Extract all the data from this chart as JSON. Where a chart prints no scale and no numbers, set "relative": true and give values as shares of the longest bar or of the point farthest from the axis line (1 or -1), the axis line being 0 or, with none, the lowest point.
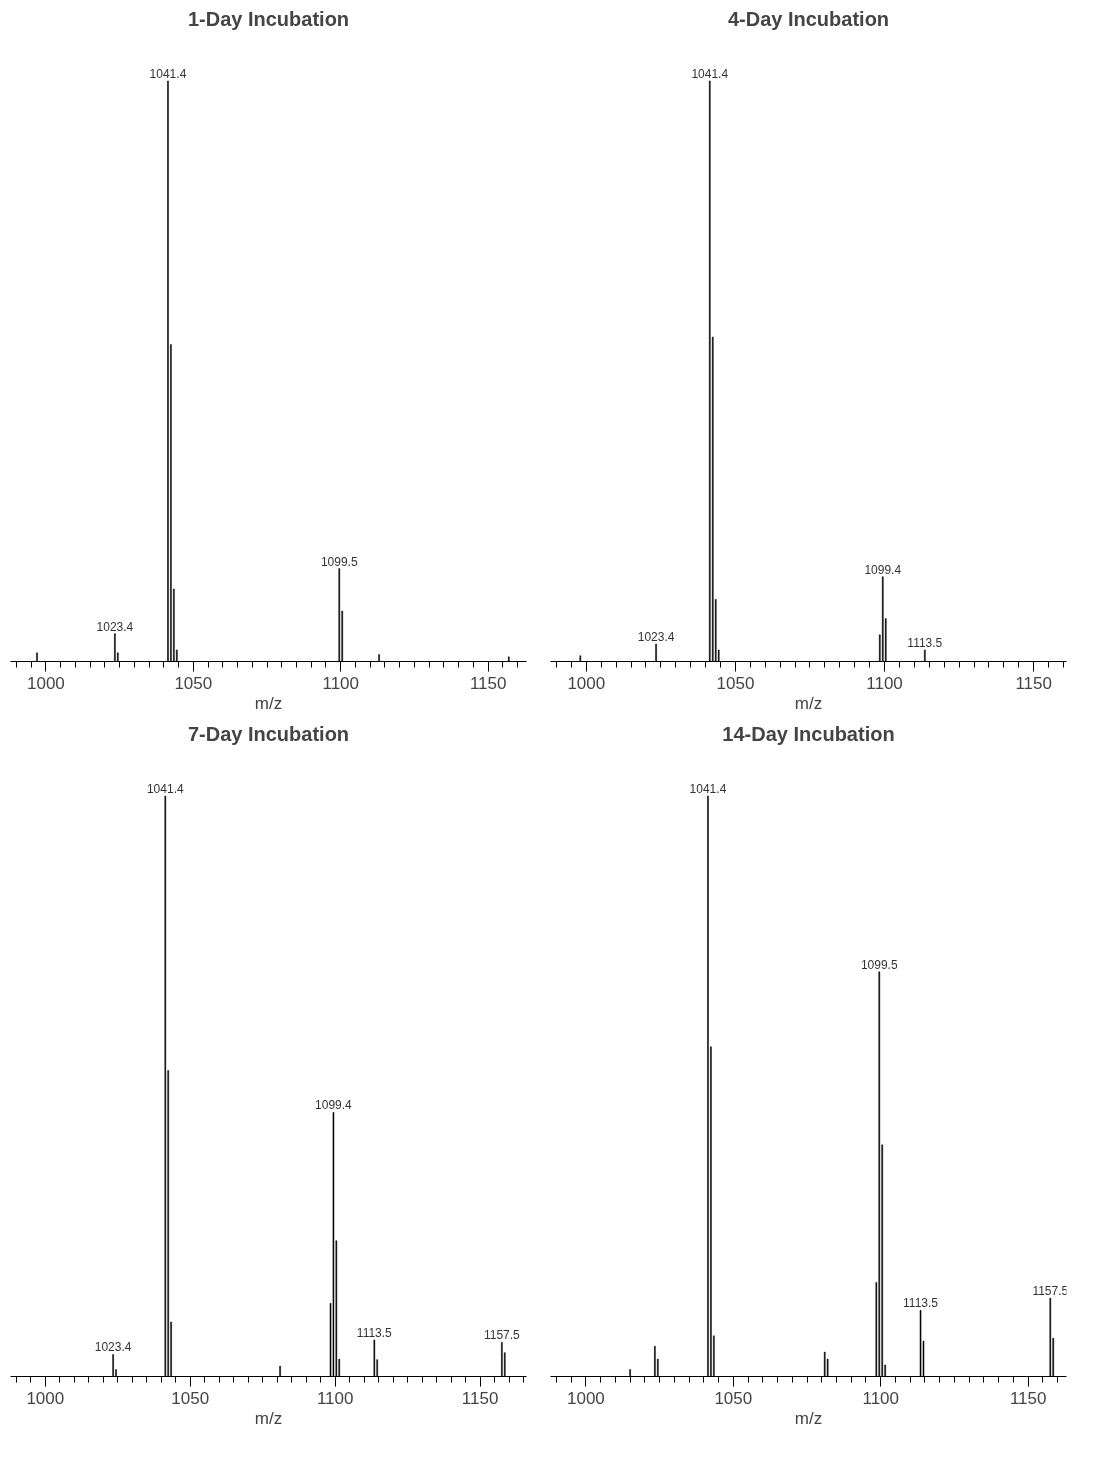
{
  "chart_data": [
    {
      "type": "bar",
      "title": "1-Day Incubation",
      "xlabel": "m/z",
      "relative": true,
      "grid": false,
      "xlim": [
        988,
        1163
      ],
      "xticks": [
        {
          "value": 990,
          "label": null
        },
        {
          "value": 995,
          "label": null
        },
        1000,
        {
          "value": 1005,
          "label": null
        },
        {
          "value": 1010,
          "label": null
        },
        {
          "value": 1015,
          "label": null
        },
        {
          "value": 1020,
          "label": null
        },
        {
          "value": 1025,
          "label": null
        },
        {
          "value": 1030,
          "label": null
        },
        {
          "value": 1035,
          "label": null
        },
        {
          "value": 1040,
          "label": null
        },
        {
          "value": 1045,
          "label": null
        },
        1050,
        {
          "value": 1055,
          "label": null
        },
        {
          "value": 1060,
          "label": null
        },
        {
          "value": 1065,
          "label": null
        },
        {
          "value": 1070,
          "label": null
        },
        {
          "value": 1075,
          "label": null
        },
        {
          "value": 1080,
          "label": null
        },
        {
          "value": 1085,
          "label": null
        },
        {
          "value": 1090,
          "label": null
        },
        {
          "value": 1095,
          "label": null
        },
        1100,
        {
          "value": 1105,
          "label": null
        },
        {
          "value": 1110,
          "label": null
        },
        {
          "value": 1115,
          "label": null
        },
        {
          "value": 1120,
          "label": null
        },
        {
          "value": 1125,
          "label": null
        },
        {
          "value": 1130,
          "label": null
        },
        {
          "value": 1135,
          "label": null
        },
        {
          "value": 1140,
          "label": null
        },
        {
          "value": 1145,
          "label": null
        },
        1150,
        {
          "value": 1155,
          "label": null
        },
        {
          "value": 1160,
          "label": null
        }
      ],
      "x": [
        997,
        1023.4,
        1024.4,
        1041.4,
        1042.4,
        1043.4,
        1044.4,
        1099.5,
        1100.5,
        1113,
        1157
      ],
      "series": [
        {
          "color": "#000000",
          "values": [
            0.015,
            0.048,
            0.015,
            1.0,
            0.546,
            0.125,
            0.02,
            0.16,
            0.087,
            0.012,
            0.008
          ]
        }
      ],
      "annotations": [
        {
          "text": "1041.4",
          "x": 1041.4,
          "y": 1.0
        },
        {
          "text": "1023.4",
          "x": 1023.4,
          "y": 0.048
        },
        {
          "text": "1099.5",
          "x": 1099.5,
          "y": 0.16
        }
      ]
    },
    {
      "type": "bar",
      "title": "4-Day Incubation",
      "xlabel": "m/z",
      "relative": true,
      "grid": false,
      "xlim": [
        988,
        1161
      ],
      "xticks": [
        {
          "value": 990,
          "label": null
        },
        {
          "value": 995,
          "label": null
        },
        1000,
        {
          "value": 1005,
          "label": null
        },
        {
          "value": 1010,
          "label": null
        },
        {
          "value": 1015,
          "label": null
        },
        {
          "value": 1020,
          "label": null
        },
        {
          "value": 1025,
          "label": null
        },
        {
          "value": 1030,
          "label": null
        },
        {
          "value": 1035,
          "label": null
        },
        {
          "value": 1040,
          "label": null
        },
        {
          "value": 1045,
          "label": null
        },
        1050,
        {
          "value": 1055,
          "label": null
        },
        {
          "value": 1060,
          "label": null
        },
        {
          "value": 1065,
          "label": null
        },
        {
          "value": 1070,
          "label": null
        },
        {
          "value": 1075,
          "label": null
        },
        {
          "value": 1080,
          "label": null
        },
        {
          "value": 1085,
          "label": null
        },
        {
          "value": 1090,
          "label": null
        },
        {
          "value": 1095,
          "label": null
        },
        1100,
        {
          "value": 1105,
          "label": null
        },
        {
          "value": 1110,
          "label": null
        },
        {
          "value": 1115,
          "label": null
        },
        {
          "value": 1120,
          "label": null
        },
        {
          "value": 1125,
          "label": null
        },
        {
          "value": 1130,
          "label": null
        },
        {
          "value": 1135,
          "label": null
        },
        {
          "value": 1140,
          "label": null
        },
        {
          "value": 1145,
          "label": null
        },
        1150,
        {
          "value": 1155,
          "label": null
        },
        {
          "value": 1160,
          "label": null
        }
      ],
      "x": [
        998,
        1023.4,
        1041.4,
        1042.4,
        1043.4,
        1044.4,
        1098.4,
        1099.4,
        1100.4,
        1113.5
      ],
      "series": [
        {
          "color": "#000000",
          "values": [
            0.01,
            0.03,
            1.0,
            0.559,
            0.107,
            0.02,
            0.046,
            0.146,
            0.074,
            0.02
          ]
        }
      ],
      "annotations": [
        {
          "text": "1041.4",
          "x": 1041.4,
          "y": 1.0
        },
        {
          "text": "1023.4",
          "x": 1023.4,
          "y": 0.03
        },
        {
          "text": "1099.4",
          "x": 1099.4,
          "y": 0.146
        },
        {
          "text": "1113.5",
          "x": 1113.5,
          "y": 0.02
        }
      ]
    },
    {
      "type": "bar",
      "title": "7-Day Incubation",
      "xlabel": "m/z",
      "relative": true,
      "grid": false,
      "xlim": [
        988,
        1166
      ],
      "xticks": [
        {
          "value": 990,
          "label": null
        },
        {
          "value": 995,
          "label": null
        },
        1000,
        {
          "value": 1005,
          "label": null
        },
        {
          "value": 1010,
          "label": null
        },
        {
          "value": 1015,
          "label": null
        },
        {
          "value": 1020,
          "label": null
        },
        {
          "value": 1025,
          "label": null
        },
        {
          "value": 1030,
          "label": null
        },
        {
          "value": 1035,
          "label": null
        },
        {
          "value": 1040,
          "label": null
        },
        {
          "value": 1045,
          "label": null
        },
        1050,
        {
          "value": 1055,
          "label": null
        },
        {
          "value": 1060,
          "label": null
        },
        {
          "value": 1065,
          "label": null
        },
        {
          "value": 1070,
          "label": null
        },
        {
          "value": 1075,
          "label": null
        },
        {
          "value": 1080,
          "label": null
        },
        {
          "value": 1085,
          "label": null
        },
        {
          "value": 1090,
          "label": null
        },
        {
          "value": 1095,
          "label": null
        },
        1100,
        {
          "value": 1105,
          "label": null
        },
        {
          "value": 1110,
          "label": null
        },
        {
          "value": 1115,
          "label": null
        },
        {
          "value": 1120,
          "label": null
        },
        {
          "value": 1125,
          "label": null
        },
        {
          "value": 1130,
          "label": null
        },
        {
          "value": 1135,
          "label": null
        },
        {
          "value": 1140,
          "label": null
        },
        {
          "value": 1145,
          "label": null
        },
        1150,
        {
          "value": 1155,
          "label": null
        },
        {
          "value": 1160,
          "label": null
        },
        {
          "value": 1165,
          "label": null
        }
      ],
      "x": [
        1023.4,
        1024.4,
        1041.4,
        1042.4,
        1043.4,
        1081,
        1098.4,
        1099.4,
        1100.4,
        1101.4,
        1113.5,
        1114.5,
        1157.5,
        1158.5
      ],
      "series": [
        {
          "color": "#000000",
          "values": [
            0.038,
            0.012,
            1.0,
            0.527,
            0.094,
            0.018,
            0.126,
            0.455,
            0.234,
            0.03,
            0.063,
            0.029,
            0.059,
            0.041
          ]
        }
      ],
      "annotations": [
        {
          "text": "1041.4",
          "x": 1041.4,
          "y": 1.0
        },
        {
          "text": "1023.4",
          "x": 1023.4,
          "y": 0.038
        },
        {
          "text": "1099.4",
          "x": 1099.4,
          "y": 0.455
        },
        {
          "text": "1113.5",
          "x": 1113.5,
          "y": 0.063
        },
        {
          "text": "1157.5",
          "x": 1157.5,
          "y": 0.059
        }
      ]
    },
    {
      "type": "bar",
      "title": "14-Day Incubation",
      "xlabel": "m/z",
      "relative": true,
      "grid": false,
      "xlim": [
        988,
        1163
      ],
      "xticks": [
        {
          "value": 990,
          "label": null
        },
        {
          "value": 995,
          "label": null
        },
        1000,
        {
          "value": 1005,
          "label": null
        },
        {
          "value": 1010,
          "label": null
        },
        {
          "value": 1015,
          "label": null
        },
        {
          "value": 1020,
          "label": null
        },
        {
          "value": 1025,
          "label": null
        },
        {
          "value": 1030,
          "label": null
        },
        {
          "value": 1035,
          "label": null
        },
        {
          "value": 1040,
          "label": null
        },
        {
          "value": 1045,
          "label": null
        },
        1050,
        {
          "value": 1055,
          "label": null
        },
        {
          "value": 1060,
          "label": null
        },
        {
          "value": 1065,
          "label": null
        },
        {
          "value": 1070,
          "label": null
        },
        {
          "value": 1075,
          "label": null
        },
        {
          "value": 1080,
          "label": null
        },
        {
          "value": 1085,
          "label": null
        },
        {
          "value": 1090,
          "label": null
        },
        {
          "value": 1095,
          "label": null
        },
        1100,
        {
          "value": 1105,
          "label": null
        },
        {
          "value": 1110,
          "label": null
        },
        {
          "value": 1115,
          "label": null
        },
        {
          "value": 1120,
          "label": null
        },
        {
          "value": 1125,
          "label": null
        },
        {
          "value": 1130,
          "label": null
        },
        {
          "value": 1135,
          "label": null
        },
        {
          "value": 1140,
          "label": null
        },
        {
          "value": 1145,
          "label": null
        },
        1150,
        {
          "value": 1155,
          "label": null
        },
        {
          "value": 1160,
          "label": null
        }
      ],
      "x": [
        1015,
        1023.4,
        1024.4,
        1041.4,
        1042.4,
        1043.4,
        1081,
        1082,
        1098.5,
        1099.5,
        1100.5,
        1101.5,
        1113.5,
        1114.5,
        1157.5,
        1158.5
      ],
      "series": [
        {
          "color": "#000000",
          "values": [
            0.012,
            0.052,
            0.03,
            1.0,
            0.568,
            0.07,
            0.042,
            0.03,
            0.162,
            0.697,
            0.399,
            0.02,
            0.114,
            0.061,
            0.135,
            0.066
          ]
        }
      ],
      "annotations": [
        {
          "text": "1041.4",
          "x": 1041.4,
          "y": 1.0
        },
        {
          "text": "1099.5",
          "x": 1099.5,
          "y": 0.697
        },
        {
          "text": "1113.5",
          "x": 1113.5,
          "y": 0.114
        },
        {
          "text": "1157.5",
          "x": 1157.5,
          "y": 0.135
        }
      ]
    }
  ]
}
